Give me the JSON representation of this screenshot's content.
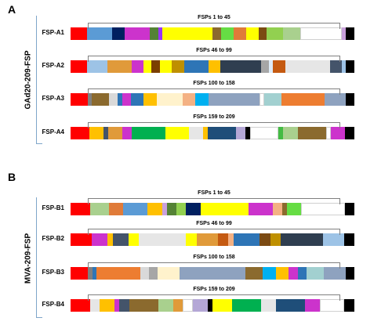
{
  "panels": [
    {
      "letter": "A",
      "side_label": "GAd20-209-FSP",
      "rows": [
        {
          "label": "FSP-A1",
          "range_label": "FSPs 1 to 45",
          "segments": [
            {
              "w": 4,
              "c": "#ff0000"
            },
            {
              "w": 6,
              "c": "#5b9bd5"
            },
            {
              "w": 3,
              "c": "#002060"
            },
            {
              "w": 6,
              "c": "#cc33cc"
            },
            {
              "w": 2,
              "c": "#548235"
            },
            {
              "w": 1,
              "c": "#9933ff"
            },
            {
              "w": 12,
              "c": "#ffff00"
            },
            {
              "w": 2,
              "c": "#8b6a2e"
            },
            {
              "w": 3,
              "c": "#66dd44"
            },
            {
              "w": 3,
              "c": "#e07b39"
            },
            {
              "w": 3,
              "c": "#ffff00"
            },
            {
              "w": 2,
              "c": "#7b4a12"
            },
            {
              "w": 4,
              "c": "#92d050"
            },
            {
              "w": 4,
              "c": "#a9d08e"
            },
            {
              "w": 10,
              "c": "#ffffff"
            },
            {
              "w": 1,
              "c": "#c9a0dc"
            },
            {
              "w": 2,
              "c": "#000000"
            }
          ]
        },
        {
          "label": "FSP-A2",
          "range_label": "FSPs 46 to 99",
          "segments": [
            {
              "w": 4,
              "c": "#ff0000"
            },
            {
              "w": 5,
              "c": "#9dc3e6"
            },
            {
              "w": 6,
              "c": "#e09a3a"
            },
            {
              "w": 3,
              "c": "#cc33cc"
            },
            {
              "w": 2,
              "c": "#ffff00"
            },
            {
              "w": 2,
              "c": "#7b3f00"
            },
            {
              "w": 3,
              "c": "#ffff00"
            },
            {
              "w": 3,
              "c": "#bf9000"
            },
            {
              "w": 6,
              "c": "#2e75b6"
            },
            {
              "w": 3,
              "c": "#ffc000"
            },
            {
              "w": 10,
              "c": "#2f3e50"
            },
            {
              "w": 2,
              "c": "#a6a6a6"
            },
            {
              "w": 1,
              "c": "#deebf7"
            },
            {
              "w": 3,
              "c": "#c55a11"
            },
            {
              "w": 11,
              "c": "#e6e6e6"
            },
            {
              "w": 3,
              "c": "#44546a"
            },
            {
              "w": 1,
              "c": "#9dc3e6"
            },
            {
              "w": 2,
              "c": "#000000"
            }
          ]
        },
        {
          "label": "FSP-A3",
          "range_label": "FSPs 100 to 158",
          "segments": [
            {
              "w": 4,
              "c": "#ff0000"
            },
            {
              "w": 1,
              "c": "#7f7f7f"
            },
            {
              "w": 4,
              "c": "#8b6a2e"
            },
            {
              "w": 2,
              "c": "#d9d9d9"
            },
            {
              "w": 1,
              "c": "#2e75b6"
            },
            {
              "w": 2,
              "c": "#cc33cc"
            },
            {
              "w": 3,
              "c": "#2e75b6"
            },
            {
              "w": 3,
              "c": "#ffc000"
            },
            {
              "w": 6,
              "c": "#fff2cc"
            },
            {
              "w": 3,
              "c": "#f4b183"
            },
            {
              "w": 3,
              "c": "#00b0f0"
            },
            {
              "w": 12,
              "c": "#8ea2bf"
            },
            {
              "w": 1,
              "c": "#ffffff"
            },
            {
              "w": 4,
              "c": "#a2d0d0"
            },
            {
              "w": 10,
              "c": "#ed7d31"
            },
            {
              "w": 5,
              "c": "#8ea2bf"
            },
            {
              "w": 2,
              "c": "#000000"
            }
          ]
        },
        {
          "label": "FSP-A4",
          "range_label": "FSPs 159 to 209",
          "segments": [
            {
              "w": 4,
              "c": "#ff0000"
            },
            {
              "w": 3,
              "c": "#ffc000"
            },
            {
              "w": 1,
              "c": "#44546a"
            },
            {
              "w": 3,
              "c": "#e09a3a"
            },
            {
              "w": 2,
              "c": "#cc33cc"
            },
            {
              "w": 7,
              "c": "#00b050"
            },
            {
              "w": 5,
              "c": "#ffff00"
            },
            {
              "w": 3,
              "c": "#e6e6e6"
            },
            {
              "w": 1,
              "c": "#ffc000"
            },
            {
              "w": 6,
              "c": "#1f4e79"
            },
            {
              "w": 2,
              "c": "#b4a7d6"
            },
            {
              "w": 1,
              "c": "#000000"
            },
            {
              "w": 6,
              "c": "#ffffff"
            },
            {
              "w": 1,
              "c": "#44bb44"
            },
            {
              "w": 3,
              "c": "#a9d08e"
            },
            {
              "w": 6,
              "c": "#8b6a2e"
            },
            {
              "w": 1,
              "c": "#ffffff"
            },
            {
              "w": 3,
              "c": "#cc33cc"
            },
            {
              "w": 2,
              "c": "#000000"
            }
          ]
        }
      ]
    },
    {
      "letter": "B",
      "side_label": "MVA-209-FSP",
      "rows": [
        {
          "label": "FSP-B1",
          "range_label": "FSPs 1 to 45",
          "segments": [
            {
              "w": 4,
              "c": "#ff0000"
            },
            {
              "w": 4,
              "c": "#a9d08e"
            },
            {
              "w": 3,
              "c": "#e07b39"
            },
            {
              "w": 5,
              "c": "#5b9bd5"
            },
            {
              "w": 3,
              "c": "#ffc000"
            },
            {
              "w": 1,
              "c": "#c9a0dc"
            },
            {
              "w": 2,
              "c": "#548235"
            },
            {
              "w": 2,
              "c": "#92d050"
            },
            {
              "w": 3,
              "c": "#002060"
            },
            {
              "w": 10,
              "c": "#ffff00"
            },
            {
              "w": 5,
              "c": "#cc33cc"
            },
            {
              "w": 2,
              "c": "#f4b183"
            },
            {
              "w": 1,
              "c": "#8b6a2e"
            },
            {
              "w": 3,
              "c": "#66dd44"
            },
            {
              "w": 9,
              "c": "#ffffff"
            },
            {
              "w": 2,
              "c": "#000000"
            }
          ]
        },
        {
          "label": "FSP-B2",
          "range_label": "FSPs 46 to 99",
          "segments": [
            {
              "w": 4,
              "c": "#ff0000"
            },
            {
              "w": 3,
              "c": "#cc33cc"
            },
            {
              "w": 1,
              "c": "#ffc000"
            },
            {
              "w": 3,
              "c": "#44546a"
            },
            {
              "w": 2,
              "c": "#ffff00"
            },
            {
              "w": 9,
              "c": "#e6e6e6"
            },
            {
              "w": 2,
              "c": "#ffff00"
            },
            {
              "w": 4,
              "c": "#e09a3a"
            },
            {
              "w": 2,
              "c": "#c55a11"
            },
            {
              "w": 1,
              "c": "#f4b183"
            },
            {
              "w": 5,
              "c": "#2e75b6"
            },
            {
              "w": 2,
              "c": "#7b4a12"
            },
            {
              "w": 2,
              "c": "#bf9000"
            },
            {
              "w": 8,
              "c": "#2f3e50"
            },
            {
              "w": 4,
              "c": "#9dc3e6"
            },
            {
              "w": 2,
              "c": "#000000"
            }
          ]
        },
        {
          "label": "FSP-B3",
          "range_label": "FSPs 100 to 158",
          "segments": [
            {
              "w": 4,
              "c": "#ff0000"
            },
            {
              "w": 1,
              "c": "#7f7f7f"
            },
            {
              "w": 1,
              "c": "#2e75b6"
            },
            {
              "w": 10,
              "c": "#ed7d31"
            },
            {
              "w": 2,
              "c": "#d9d9d9"
            },
            {
              "w": 2,
              "c": "#a6a6a6"
            },
            {
              "w": 5,
              "c": "#fff2cc"
            },
            {
              "w": 15,
              "c": "#8ea2bf"
            },
            {
              "w": 4,
              "c": "#8b6a2e"
            },
            {
              "w": 3,
              "c": "#00b0f0"
            },
            {
              "w": 3,
              "c": "#ffc000"
            },
            {
              "w": 2,
              "c": "#cc33cc"
            },
            {
              "w": 2,
              "c": "#2e75b6"
            },
            {
              "w": 4,
              "c": "#a2d0d0"
            },
            {
              "w": 5,
              "c": "#8ea2bf"
            },
            {
              "w": 2,
              "c": "#000000"
            }
          ]
        },
        {
          "label": "FSP-B4",
          "range_label": "FSPs 159 to 209",
          "segments": [
            {
              "w": 4,
              "c": "#ff0000"
            },
            {
              "w": 2,
              "c": "#e6e6e6"
            },
            {
              "w": 3,
              "c": "#ffc000"
            },
            {
              "w": 1,
              "c": "#cc33cc"
            },
            {
              "w": 2,
              "c": "#44546a"
            },
            {
              "w": 6,
              "c": "#8b6a2e"
            },
            {
              "w": 3,
              "c": "#a9d08e"
            },
            {
              "w": 2,
              "c": "#e09a3a"
            },
            {
              "w": 2,
              "c": "#ffffff"
            },
            {
              "w": 3,
              "c": "#b4a7d6"
            },
            {
              "w": 1,
              "c": "#000000"
            },
            {
              "w": 4,
              "c": "#ffff00"
            },
            {
              "w": 6,
              "c": "#00b050"
            },
            {
              "w": 3,
              "c": "#e6e6e6"
            },
            {
              "w": 6,
              "c": "#1f4e79"
            },
            {
              "w": 3,
              "c": "#cc33cc"
            },
            {
              "w": 5,
              "c": "#ffffff"
            },
            {
              "w": 2,
              "c": "#000000"
            }
          ]
        }
      ]
    }
  ]
}
